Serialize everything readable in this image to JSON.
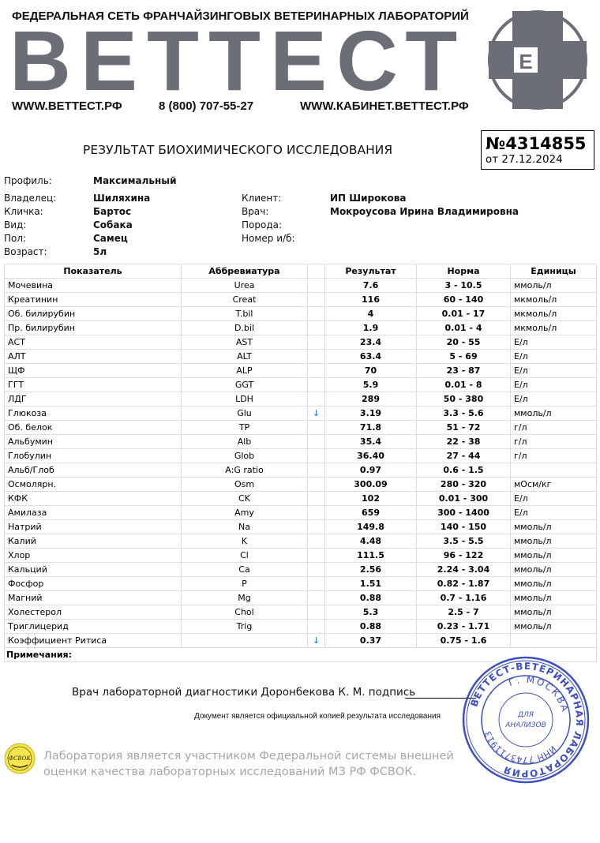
{
  "header": {
    "tagline": "ФЕДЕРАЛЬНАЯ СЕТЬ ФРАНЧАЙЗИНГОВЫХ ВЕТЕРИНАРНЫХ  ЛАБОРАТОРИЙ",
    "brand": "ВЕТТЕСТ",
    "logo_letter": "Е",
    "website": "WWW.ВЕТТЕСТ.РФ",
    "phone": "8 (800) 707-55-27",
    "cabinet": "WWW.КАБИНЕТ.ВЕТТЕСТ.РФ",
    "brand_color": "#6b6e76"
  },
  "report": {
    "title": "РЕЗУЛЬТАТ БИОХИМИЧЕСКОГО ИССЛЕДОВАНИЯ",
    "number": "№4314855",
    "date": "от 27.12.2024"
  },
  "info": {
    "profile_label": "Профиль:",
    "profile": "Максимальный",
    "owner_label": "Владелец:",
    "owner": "Шиляхина",
    "name_label": "Кличка:",
    "name": "Бартос",
    "species_label": "Вид:",
    "species": "Собака",
    "sex_label": "Пол:",
    "sex": "Самец",
    "age_label": "Возраст:",
    "age": "5л",
    "client_label": "Клиент:",
    "client": "ИП Широкова",
    "doctor_label": "Врач:",
    "doctor": "Мокроусова Ирина Владимировна",
    "breed_label": "Порода:",
    "breed": "",
    "record_label": "Номер и/б:",
    "record": ""
  },
  "table": {
    "columns": [
      "Показатель",
      "Аббревиатура",
      "",
      "Результат",
      "Норма",
      "Единицы"
    ],
    "rows": [
      [
        "Мочевина",
        "Urea",
        "",
        "7.6",
        "3 - 10.5",
        "ммоль/л"
      ],
      [
        "Креатинин",
        "Creat",
        "",
        "116",
        "60 - 140",
        "мкмоль/л"
      ],
      [
        "Об. билирубин",
        "T.bil",
        "",
        "4",
        "0.01 - 17",
        "мкмоль/л"
      ],
      [
        "Пр. билирубин",
        "D.bil",
        "",
        "1.9",
        "0.01 - 4",
        "мкмоль/л"
      ],
      [
        "АСТ",
        "AST",
        "",
        "23.4",
        "20 - 55",
        "Е/л"
      ],
      [
        "АЛТ",
        "ALT",
        "",
        "63.4",
        "5 - 69",
        "Е/л"
      ],
      [
        "ЩФ",
        "ALP",
        "",
        "70",
        "23 - 87",
        "Е/л"
      ],
      [
        "ГГТ",
        "GGT",
        "",
        "5.9",
        "0.01 - 8",
        "Е/л"
      ],
      [
        "ЛДГ",
        "LDH",
        "",
        "289",
        "50 - 380",
        "Е/л"
      ],
      [
        "Глюкоза",
        "Glu",
        "↓",
        "3.19",
        "3.3 - 5.6",
        "ммоль/л"
      ],
      [
        "Об. белок",
        "TP",
        "",
        "71.8",
        "51 - 72",
        "г/л"
      ],
      [
        "Альбумин",
        "Alb",
        "",
        "35.4",
        "22 - 38",
        "г/л"
      ],
      [
        "Глобулин",
        "Glob",
        "",
        "36.40",
        "27 - 44",
        "г/л"
      ],
      [
        "Альб/Глоб",
        "A:G ratio",
        "",
        "0.97",
        "0.6 - 1.5",
        ""
      ],
      [
        "Осмолярн.",
        "Osm",
        "",
        "300.09",
        "280 - 320",
        "мОсм/кг"
      ],
      [
        "КФК",
        "CK",
        "",
        "102",
        "0.01 - 300",
        "Е/л"
      ],
      [
        "Амилаза",
        "Amy",
        "",
        "659",
        "300 - 1400",
        "Е/л"
      ],
      [
        "Натрий",
        "Na",
        "",
        "149.8",
        "140 - 150",
        "ммоль/л"
      ],
      [
        "Калий",
        "K",
        "",
        "4.48",
        "3.5 - 5.5",
        "ммоль/л"
      ],
      [
        "Хлор",
        "Cl",
        "",
        "111.5",
        "96 - 122",
        "ммоль/л"
      ],
      [
        "Кальций",
        "Ca",
        "",
        "2.56",
        "2.24 - 3.04",
        "ммоль/л"
      ],
      [
        "Фосфор",
        "P",
        "",
        "1.51",
        "0.82 - 1.87",
        "ммоль/л"
      ],
      [
        "Магний",
        "Mg",
        "",
        "0.88",
        "0.7 - 1.16",
        "ммоль/л"
      ],
      [
        "Холестерол",
        "Chol",
        "",
        "5.3",
        "2.5 - 7",
        "ммоль/л"
      ],
      [
        "Триглицерид",
        "Trig",
        "",
        "0.88",
        "0.23 - 1.71",
        "ммоль/л"
      ],
      [
        "Коэффициент Ритиса",
        "",
        "↓",
        "0.37",
        "0.75 - 1.6",
        ""
      ]
    ],
    "notes_label": "Примечания:",
    "low_color": "#1a6fd6"
  },
  "footer": {
    "signature": "Врач лабораторной диагностики Доронбекова К. М. подпись",
    "copy_note": "Документ является официальной копией результата исследования",
    "fsvok_logo": "ФСВОК",
    "fsvok_line1": "Лаборатория является участником Федеральной системы внешней",
    "fsvok_line2": "оценки качества лабораторных исследований МЗ РФ ФСВОК."
  },
  "stamp": {
    "outer_text": "ВЕТТЕСТ-ВЕТЕРИНАРНАЯ ЛАБОРАТОРИЯ",
    "city": "Г. МОСКВА",
    "inn": "ИНН 7743711913",
    "center1": "ДЛЯ",
    "center2": "АНАЛИЗОВ",
    "color": "#2a3bbd"
  }
}
